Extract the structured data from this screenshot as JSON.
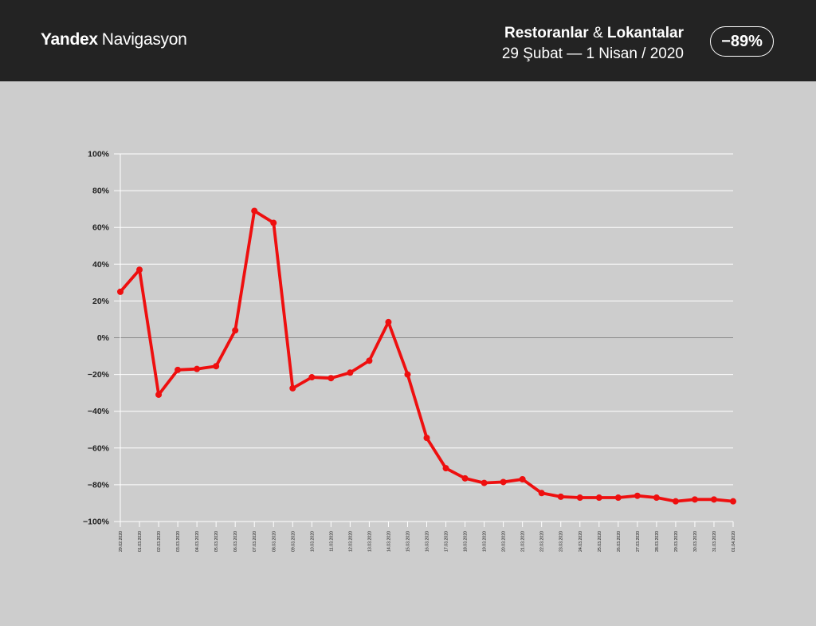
{
  "header": {
    "brand_bold": "Yandex",
    "brand_light": "Navigasyon",
    "title_part1": "Restoranlar",
    "title_amp": "&",
    "title_part2": "Lokantalar",
    "date_range": "29 Şubat  —  1 Nisan / 2020",
    "badge": "−89%"
  },
  "colors": {
    "header_bg": "#232323",
    "background": "#cdcdcd",
    "line": "#ee0f0f",
    "grid": "#ffffff",
    "zero_line": "#8a8a8a"
  },
  "chart_data": {
    "type": "line",
    "x": [
      "29.02.2020",
      "01.03.2020",
      "02.03.2020",
      "03.03.2020",
      "04.03.2020",
      "05.03.2020",
      "06.03.2020",
      "07.03.2020",
      "08.03.2020",
      "09.03.2020",
      "10.03.2020",
      "11.03.2020",
      "12.03.2020",
      "13.03.2020",
      "14.03.2020",
      "15.03.2020",
      "16.03.2020",
      "17.03.2020",
      "18.03.2020",
      "19.03.2020",
      "20.03.2020",
      "21.03.2020",
      "22.03.2020",
      "23.03.2020",
      "24.03.2020",
      "25.03.2020",
      "26.03.2020",
      "27.03.2020",
      "28.03.2020",
      "29.03.2020",
      "30.03.2020",
      "31.03.2020",
      "01.04.2020"
    ],
    "series": [
      {
        "values": [
          25,
          37,
          -31,
          -17.5,
          -17,
          -15.5,
          4,
          69,
          62.5,
          -27.5,
          -21.5,
          -22,
          -19,
          -12.5,
          8.5,
          -20,
          -54.5,
          -71,
          -76.5,
          -79,
          -78.5,
          -77,
          -84.5,
          -86.5,
          -87,
          -87,
          -87,
          -86,
          -87,
          -89,
          -88,
          -88,
          -89
        ]
      }
    ],
    "ylim": [
      -100,
      100
    ],
    "yticks": [
      "100%",
      "80%",
      "60%",
      "40%",
      "20%",
      "0%",
      "−20%",
      "−40%",
      "−60%",
      "−80%",
      "−100%"
    ],
    "ytick_values": [
      100,
      80,
      60,
      40,
      20,
      0,
      -20,
      -40,
      -60,
      -80,
      -100
    ],
    "grid": true,
    "title": "",
    "xlabel": "",
    "ylabel": ""
  }
}
